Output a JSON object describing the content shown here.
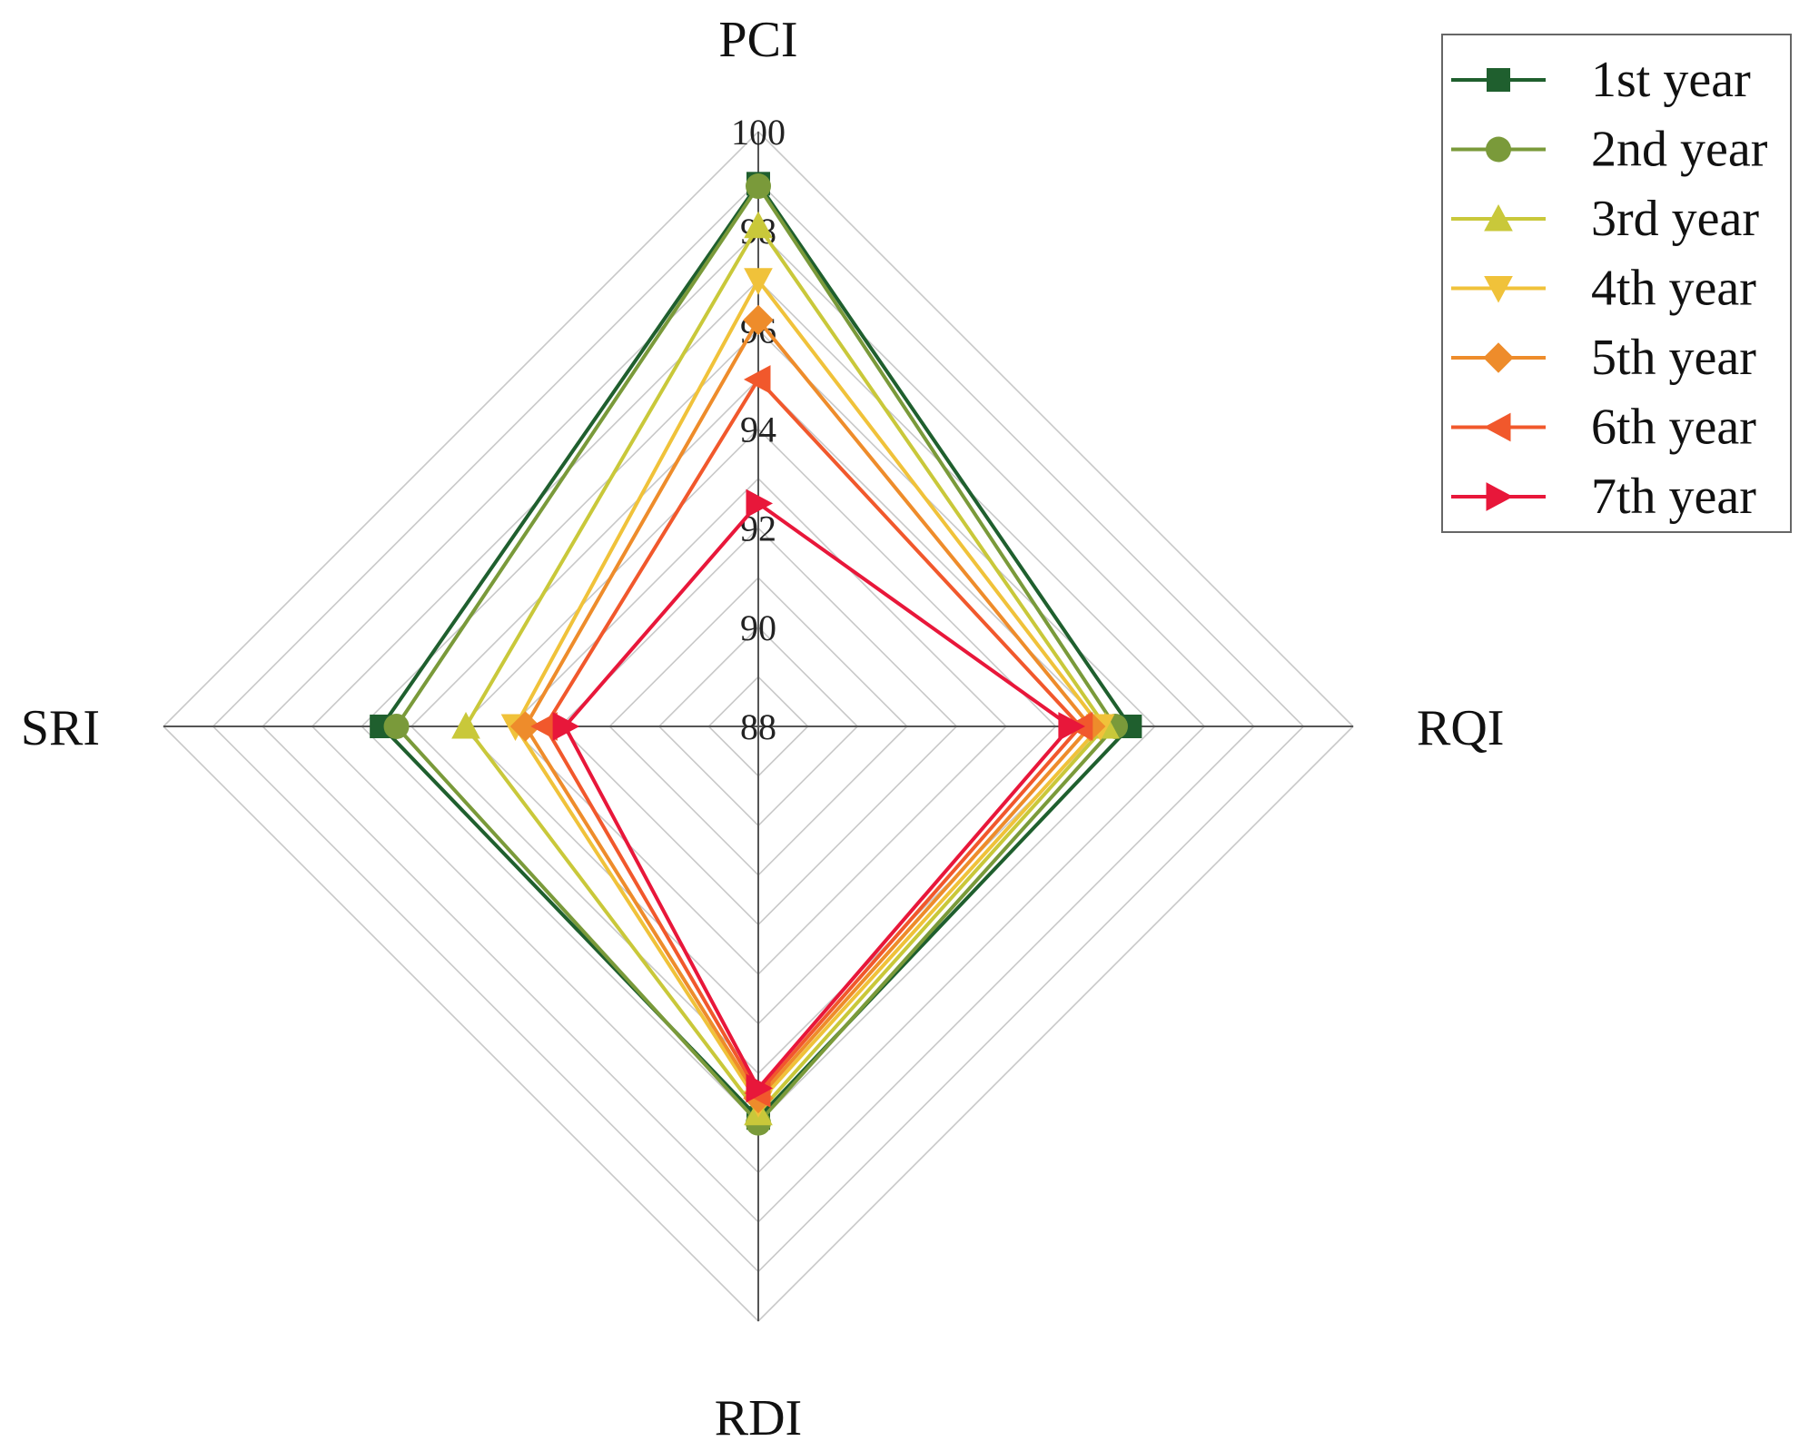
{
  "chart_data": {
    "type": "radar",
    "axes": [
      "PCI",
      "RQI",
      "RDI",
      "SRI"
    ],
    "rlim": [
      88,
      100
    ],
    "ticks": [
      88,
      90,
      92,
      94,
      96,
      98,
      100
    ],
    "grid": true,
    "legend_position": "top-right",
    "series": [
      {
        "name": "1st year",
        "marker": "square",
        "color": "#1f5f2e",
        "values": [
          98.95,
          95.5,
          95.9,
          95.6
        ]
      },
      {
        "name": "2nd year",
        "marker": "circle",
        "color": "#7a9a3a",
        "values": [
          98.9,
          95.2,
          96.0,
          95.3
        ]
      },
      {
        "name": "3rd year",
        "marker": "triangle-up",
        "color": "#c9c83a",
        "values": [
          98.1,
          95.0,
          95.8,
          93.9
        ]
      },
      {
        "name": "4th year",
        "marker": "triangle-down",
        "color": "#f0c23a",
        "values": [
          97.0,
          94.9,
          95.6,
          92.9
        ]
      },
      {
        "name": "5th year",
        "marker": "diamond",
        "color": "#ee8c2b",
        "values": [
          96.2,
          94.7,
          95.5,
          92.7
        ]
      },
      {
        "name": "6th year",
        "marker": "triangle-left",
        "color": "#f1582c",
        "values": [
          95.0,
          94.5,
          95.4,
          92.3
        ]
      },
      {
        "name": "7th year",
        "marker": "triangle-right",
        "color": "#e8173a",
        "values": [
          92.5,
          94.3,
          95.3,
          91.9
        ]
      }
    ]
  }
}
